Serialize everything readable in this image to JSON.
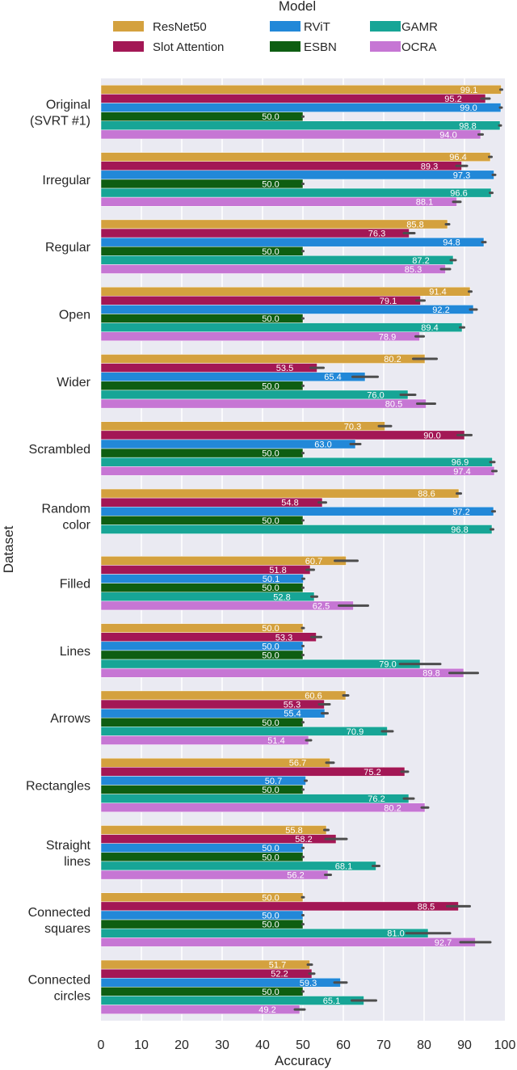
{
  "chart_data": {
    "type": "bar",
    "orientation": "horizontal",
    "xlabel": "Accuracy",
    "ylabel": "Dataset",
    "xlim": [
      0,
      100
    ],
    "xticks": [
      "0",
      "10",
      "20",
      "30",
      "40",
      "50",
      "60",
      "70",
      "80",
      "90",
      "100"
    ],
    "grid": true,
    "legend": {
      "title": "Model",
      "placement": "top-center",
      "columns": 3
    },
    "categories": [
      [
        "Original",
        "(SVRT #1)"
      ],
      [
        "Irregular"
      ],
      [
        "Regular"
      ],
      [
        "Open"
      ],
      [
        "Wider"
      ],
      [
        "Scrambled"
      ],
      [
        "Random",
        "color"
      ],
      [
        "Filled"
      ],
      [
        "Lines"
      ],
      [
        "Arrows"
      ],
      [
        "Rectangles"
      ],
      [
        "Straight",
        "lines"
      ],
      [
        "Connected",
        "squares"
      ],
      [
        "Connected",
        "circles"
      ]
    ],
    "series": [
      {
        "name": "ResNet50",
        "color": "#d4a13e",
        "values": [
          99.1,
          96.4,
          85.8,
          91.4,
          80.2,
          70.3,
          88.6,
          60.7,
          50.0,
          60.6,
          56.7,
          55.8,
          50.0,
          51.7
        ],
        "err": [
          0.2,
          0.3,
          0.4,
          0.3,
          2.9,
          1.5,
          0.5,
          2.8,
          0.2,
          0.6,
          0.9,
          0.5,
          0.2,
          0.5
        ]
      },
      {
        "name": "Slot Attention",
        "color": "#a31755",
        "values": [
          95.2,
          89.3,
          76.3,
          79.1,
          53.5,
          90.0,
          54.8,
          51.8,
          53.3,
          55.3,
          75.2,
          58.2,
          88.5,
          52.2
        ],
        "err": [
          1.0,
          1.3,
          1.3,
          1.0,
          1.6,
          1.7,
          0.9,
          0.9,
          1.2,
          1.3,
          0.8,
          2.6,
          2.8,
          0.6
        ]
      },
      {
        "name": "RViT",
        "color": "#2288d8",
        "values": [
          99.0,
          97.3,
          94.8,
          92.2,
          65.4,
          63.0,
          97.2,
          50.1,
          50.0,
          55.4,
          50.7,
          50.0,
          50.0,
          59.3
        ],
        "err": [
          0.2,
          0.3,
          0.4,
          0.8,
          3.1,
          1.2,
          0.3,
          0.2,
          0.1,
          0.7,
          0.2,
          0.1,
          0.1,
          1.5
        ]
      },
      {
        "name": "ESBN",
        "color": "#0e5e12",
        "values": [
          50.0,
          50.0,
          50.0,
          50.0,
          50.0,
          50.0,
          50.0,
          50.0,
          50.0,
          50.0,
          50.0,
          50.0,
          50.0,
          50.0
        ],
        "err": [
          0.1,
          0.1,
          0.1,
          0.1,
          0.1,
          0.1,
          0.1,
          0.1,
          0.1,
          0.1,
          0.1,
          0.1,
          0.1,
          0.1
        ]
      },
      {
        "name": "GAMR",
        "color": "#17a596",
        "values": [
          98.8,
          96.6,
          87.2,
          89.4,
          76.0,
          96.9,
          96.8,
          52.8,
          79.0,
          70.9,
          76.2,
          68.1,
          81.0,
          65.1
        ],
        "err": [
          0.2,
          0.3,
          0.6,
          0.5,
          1.8,
          0.5,
          0.3,
          0.7,
          5.0,
          1.3,
          1.2,
          0.8,
          5.4,
          3.0
        ]
      },
      {
        "name": "OCRA",
        "color": "#c676d4",
        "values": [
          94.0,
          88.1,
          85.3,
          78.9,
          80.5,
          97.4,
          null,
          62.5,
          89.8,
          51.4,
          80.2,
          56.2,
          92.7,
          49.2
        ],
        "err": [
          0.5,
          0.9,
          1.1,
          1.0,
          2.2,
          0.5,
          null,
          3.6,
          3.5,
          0.6,
          0.8,
          0.7,
          3.7,
          1.2
        ]
      }
    ]
  }
}
